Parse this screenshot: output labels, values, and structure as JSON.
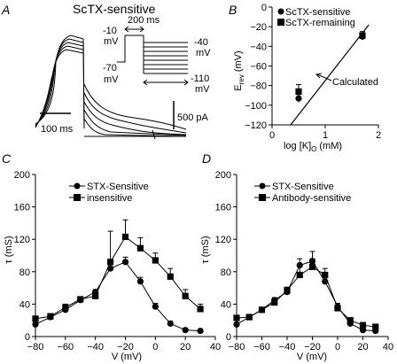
{
  "colors": {
    "ink": "#000000",
    "background": "#ffffff"
  },
  "chart_data": [
    {
      "panel": "A",
      "type": "line",
      "title": "ScTX-sensitive",
      "inset": {
        "duration_label": "200 ms",
        "hold_label_1": "-10",
        "hold_label_1_unit": "mV",
        "prepulse_label": "-70",
        "prepulse_label_unit": "mV",
        "test_top_label": "-40",
        "test_top_unit": "mV",
        "test_bottom_label": "-110",
        "test_bottom_unit": "mV"
      },
      "scalebar_time_label": "100 ms",
      "scalebar_current_label": "500 pA"
    },
    {
      "panel": "B",
      "type": "scatter",
      "xlabel": "log [K]",
      "xlabel_sub": "O",
      "xlabel_unit": "(mM)",
      "ylabel": "E",
      "ylabel_sub": "rev",
      "ylabel_unit": "(mV)",
      "xlim": [
        0,
        2
      ],
      "ylim": [
        -120,
        0
      ],
      "xticks": [
        0,
        1,
        2
      ],
      "yticks": [
        0,
        -20,
        -40,
        -60,
        -80,
        -100,
        -120
      ],
      "annotation": "Calculated",
      "calculated_line": {
        "x": [
          0.35,
          1.82
        ],
        "y": [
          -120,
          -18
        ]
      },
      "series": [
        {
          "name": "ScTX-sensitive",
          "marker": "circle",
          "x": [
            0.5,
            1.7
          ],
          "y": [
            -93,
            -30
          ],
          "err": [
            4,
            3
          ]
        },
        {
          "name": "ScTX-remaining",
          "marker": "square",
          "x": [
            0.5,
            1.7
          ],
          "y": [
            -86,
            -29
          ],
          "err": [
            7,
            4
          ]
        }
      ]
    },
    {
      "panel": "C",
      "type": "line",
      "xlabel": "V (mV)",
      "ylabel": "τ (mS)",
      "xlim": [
        -80,
        40
      ],
      "ylim": [
        0,
        200
      ],
      "xticks": [
        -80,
        -60,
        -40,
        -20,
        0,
        20,
        40
      ],
      "yticks": [
        0,
        40,
        80,
        120,
        160,
        200
      ],
      "legend": "top-left",
      "x": [
        -80,
        -70,
        -60,
        -50,
        -40,
        -30,
        -20,
        -10,
        0,
        10,
        20,
        30
      ],
      "series": [
        {
          "name": "STX-Sensitive",
          "marker": "circle",
          "values": [
            15,
            24,
            33,
            45,
            55,
            84,
            92,
            68,
            37,
            16,
            8,
            7
          ],
          "err": [
            2,
            2,
            2,
            3,
            3,
            5,
            6,
            5,
            4,
            3,
            2,
            1
          ]
        },
        {
          "name": "insensitive",
          "marker": "square",
          "values": [
            22,
            25,
            36,
            46,
            50,
            92,
            123,
            109,
            94,
            74,
            50,
            34
          ],
          "err": [
            3,
            3,
            4,
            3,
            4,
            38,
            21,
            13,
            9,
            10,
            8,
            6
          ]
        }
      ]
    },
    {
      "panel": "D",
      "type": "line",
      "xlabel": "V (mV)",
      "ylabel": "τ (mS)",
      "xlim": [
        -80,
        40
      ],
      "ylim": [
        0,
        200
      ],
      "xticks": [
        -80,
        -60,
        -40,
        -20,
        0,
        20,
        40
      ],
      "yticks": [
        0,
        40,
        80,
        120,
        160,
        200
      ],
      "legend": "top-left",
      "x": [
        -80,
        -70,
        -60,
        -50,
        -40,
        -30,
        -20,
        -10,
        0,
        10,
        20,
        30
      ],
      "series": [
        {
          "name": "STX-Sensitive",
          "marker": "circle",
          "values": [
            15,
            24,
            33,
            45,
            55,
            88,
            93,
            68,
            37,
            16,
            8,
            7
          ],
          "err": [
            2,
            2,
            2,
            3,
            3,
            8,
            12,
            6,
            4,
            3,
            2,
            2
          ]
        },
        {
          "name": "Antibody-sensitive",
          "marker": "square",
          "values": [
            23,
            24,
            33,
            42,
            57,
            76,
            86,
            76,
            35,
            20,
            14,
            12
          ],
          "err": [
            3,
            3,
            3,
            3,
            4,
            10,
            10,
            8,
            4,
            3,
            2,
            2
          ]
        }
      ]
    }
  ]
}
